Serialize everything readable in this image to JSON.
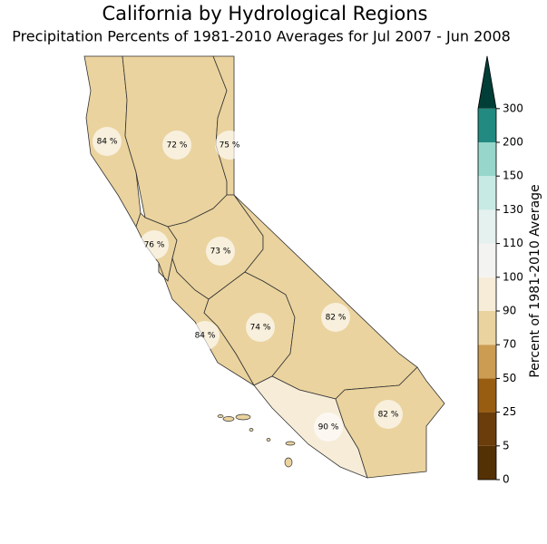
{
  "title": "California by Hydrological Regions",
  "subtitle": "Precipitation Percents of 1981-2010 Averages for Jul 2007 - Jun 2008",
  "regions": {
    "values": [
      84,
      72,
      75,
      76,
      73,
      84,
      74,
      82,
      90,
      82
    ],
    "value_labels": [
      "84 %",
      "72 %",
      "75 %",
      "76 %",
      "73 %",
      "84 %",
      "74 %",
      "82 %",
      "90 %",
      "82 %"
    ]
  },
  "colorbar": {
    "label": "Percent of 1981-2010 Average",
    "ticks": [
      0,
      5,
      25,
      50,
      70,
      90,
      100,
      110,
      130,
      150,
      200,
      300
    ],
    "colors": [
      "#543005",
      "#6a3d0b",
      "#995d12",
      "#cc9c52",
      "#ead39e",
      "#f6ecd8",
      "#f3f3f1",
      "#e4f1ee",
      "#c7eae4",
      "#96d6cb",
      "#228a80",
      "#013e37"
    ]
  }
}
